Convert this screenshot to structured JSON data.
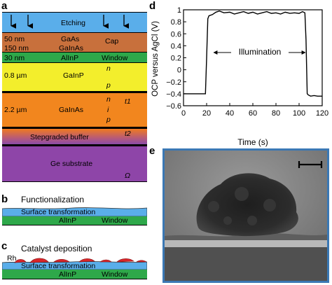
{
  "panel_a": {
    "label": "a",
    "etching": "Etching",
    "gaas_thickness": "50 nm",
    "gaas": "GaAs",
    "cap": "Cap",
    "gainas_top_thickness": "150 nm",
    "gainas_top": "GaInAs",
    "allnp_thickness": "30 nm",
    "allnp": "AlInP",
    "window": "Window",
    "gainp_thickness": "0.8 µm",
    "gainp": "GaInP",
    "n1": "n",
    "p1": "p",
    "t1": "t1",
    "gainas_thickness": "2.2 µm",
    "gainas": "GaInAs",
    "n2": "n",
    "i2": "i",
    "p2": "p",
    "stepgraded": "Stepgraded buffer",
    "t2": "t2",
    "ge": "Ge substrate",
    "omega": "Ω",
    "colors": {
      "etching": "#5aaeea",
      "cap": "#c8703c",
      "window": "#2ea84a",
      "gainp": "#f3ee2c",
      "gainas": "#f2861e",
      "buffer_top": "#f07a20",
      "buffer_bottom": "#8a4ba8",
      "ge": "#8e45a8"
    }
  },
  "panel_b": {
    "label": "b",
    "title": "Functionalization",
    "surface": "Surface transformation",
    "allnp": "AlInP",
    "window": "Window"
  },
  "panel_c": {
    "label": "c",
    "title": "Catalyst deposition",
    "rh": "Rh",
    "surface": "Surface transformation",
    "allnp": "AlInP",
    "window": "Window"
  },
  "panel_d": {
    "label": "d",
    "annotation": "Illumination"
  },
  "panel_e": {
    "label": "e"
  },
  "chart_data": {
    "type": "line",
    "title": "",
    "xlabel": "Time (s)",
    "ylabel": "OCP versus AgCl (V)",
    "xlim": [
      0,
      120
    ],
    "ylim": [
      -0.6,
      1.0
    ],
    "xticks": [
      0,
      20,
      40,
      60,
      80,
      100,
      120
    ],
    "yticks": [
      -0.6,
      -0.4,
      -0.2,
      0,
      0.2,
      0.4,
      0.6,
      0.8,
      1.0
    ],
    "xtick_labels": [
      "0",
      "20",
      "40",
      "60",
      "80",
      "100",
      "120"
    ],
    "ytick_labels": [
      "−0.6",
      "−0.4",
      "−0.2",
      "0",
      "0.2",
      "0.4",
      "0.6",
      "0.8",
      "1"
    ],
    "grid": false,
    "series": [
      {
        "x": [
          0,
          5,
          10,
          15,
          19,
          20,
          21,
          22,
          25,
          28,
          31,
          35,
          40,
          44,
          48,
          52,
          56,
          60,
          64,
          68,
          72,
          76,
          80,
          84,
          88,
          92,
          96,
          100,
          103,
          105,
          106,
          107,
          108,
          110,
          113,
          116,
          120
        ],
        "y": [
          -0.4,
          -0.4,
          -0.4,
          -0.4,
          -0.4,
          0.2,
          0.85,
          0.9,
          0.92,
          0.96,
          0.98,
          0.95,
          0.96,
          0.93,
          0.95,
          0.97,
          0.94,
          0.96,
          0.93,
          0.95,
          0.97,
          0.94,
          0.95,
          0.93,
          0.96,
          0.94,
          0.95,
          0.94,
          0.97,
          0.95,
          0.5,
          -0.4,
          -0.42,
          -0.44,
          -0.43,
          -0.44,
          -0.44
        ]
      }
    ]
  }
}
